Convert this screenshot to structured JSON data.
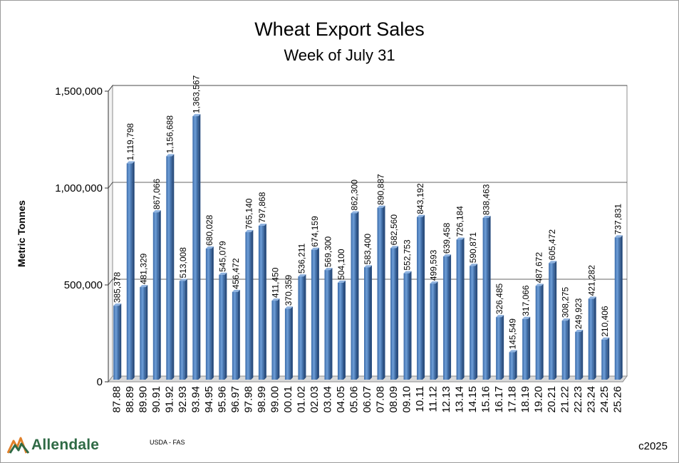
{
  "chart_data": {
    "type": "bar",
    "title": "Wheat Export Sales",
    "subtitle": "Week of July 31",
    "ylabel": "Metric Tonnes",
    "xlabel": "",
    "ylim": [
      0,
      1500000
    ],
    "yticks": [
      "0",
      "500,000",
      "1,000,000",
      "1,500,000"
    ],
    "ytick_values": [
      0,
      500000,
      1000000,
      1500000
    ],
    "gridlines": "major",
    "bar_color": "#4f81bd",
    "categories": [
      "87.88",
      "88.89",
      "89.90",
      "90.91",
      "91.92",
      "92.93",
      "93.94",
      "94.95",
      "95.96",
      "96.97",
      "97.98",
      "98.99",
      "99.00",
      "00.01",
      "01.02",
      "02.03",
      "03.04",
      "04.05",
      "05.06",
      "06.07",
      "07.08",
      "08.09",
      "09.10",
      "10.11",
      "11.12",
      "12.13",
      "13.14",
      "14.15",
      "15.16",
      "16.17",
      "17.18",
      "18.19",
      "19.20",
      "20.21",
      "21.22",
      "22.23",
      "23.24",
      "24.25",
      "25.26"
    ],
    "values": [
      385378,
      1119798,
      481329,
      867066,
      1156688,
      513008,
      1363567,
      680028,
      545079,
      456472,
      765140,
      797868,
      411450,
      370359,
      536211,
      674159,
      569300,
      504100,
      862300,
      583400,
      890887,
      682560,
      552753,
      843192,
      499593,
      639458,
      726184,
      590871,
      838463,
      326485,
      145549,
      317066,
      487672,
      605472,
      308275,
      249923,
      421282,
      210406,
      737831
    ],
    "data_labels": [
      "385,378",
      "1,119,798",
      "481,329",
      "867,066",
      "1,156,688",
      "513,008",
      "1,363,567",
      "680,028",
      "545,079",
      "456,472",
      "765,140",
      "797,868",
      "411,450",
      "370,359",
      "536,211",
      "674,159",
      "569,300",
      "504,100",
      "862,300",
      "583,400",
      "890,887",
      "682,560",
      "552,753",
      "843,192",
      "499,593",
      "639,458",
      "726,184",
      "590,871",
      "838,463",
      "326,485",
      "145,549",
      "317,066",
      "487,672",
      "605,472",
      "308,275",
      "249,923",
      "421,282",
      "210,406",
      "737,831"
    ]
  },
  "footer": {
    "logo_text": "Allendale",
    "source": "USDA - FAS",
    "copyright": "c2025"
  },
  "colors": {
    "logo_green": "#2f6a45",
    "logo_orange": "#e0802a"
  }
}
